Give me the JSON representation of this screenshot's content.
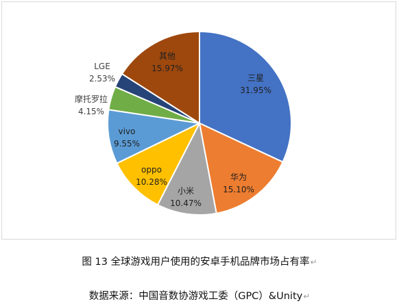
{
  "chart_data": {
    "type": "pie",
    "slices": [
      {
        "label": "三星",
        "value": 31.95,
        "value_label": "31.95%",
        "color": "#4472C4",
        "text_color": "#1f1f1f"
      },
      {
        "label": "华为",
        "value": 15.1,
        "value_label": "15.10%",
        "color": "#ED7D31",
        "text_color": "#1f1f1f"
      },
      {
        "label": "小米",
        "value": 10.47,
        "value_label": "10.47%",
        "color": "#A5A5A5",
        "text_color": "#1f1f1f"
      },
      {
        "label": "oppo",
        "value": 10.28,
        "value_label": "10.28%",
        "color": "#FFC000",
        "text_color": "#1f1f1f"
      },
      {
        "label": "vivo",
        "value": 9.55,
        "value_label": "9.55%",
        "color": "#5B9BD5",
        "text_color": "#1f1f1f"
      },
      {
        "label": "摩托罗拉",
        "value": 4.15,
        "value_label": "4.15%",
        "color": "#70AD47",
        "text_color": "#404040"
      },
      {
        "label": "LGE",
        "value": 2.53,
        "value_label": "2.53%",
        "color": "#264478",
        "text_color": "#404040"
      },
      {
        "label": "其他",
        "value": 15.97,
        "value_label": "15.97%",
        "color": "#9E480E",
        "text_color": "#1f1f1f"
      }
    ]
  },
  "captions": {
    "figure": "图 13  全球游戏用户使用的安卓手机品牌市场占有率",
    "source": "数据来源：中国音数协游戏工委（GPC）&Unity",
    "return_mark": "↵"
  }
}
